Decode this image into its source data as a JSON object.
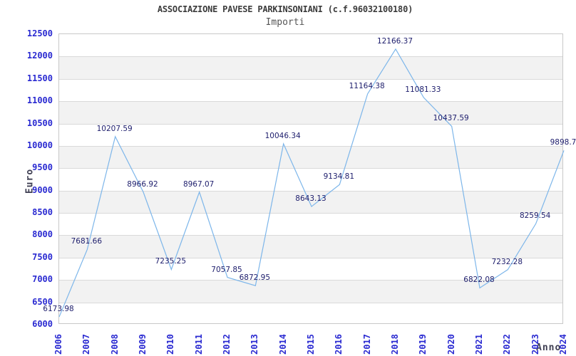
{
  "header": {
    "title": "ASSOCIAZIONE PAVESE PARKINSONIANI (c.f.96032100180)",
    "subtitle": "Importi"
  },
  "colors": {
    "title": "#3b3b3b",
    "subtitle": "#565656",
    "tick_label": "#2929d1",
    "data_label": "#20206e",
    "axis_title": "#3e3e52",
    "line": "#7db6ea",
    "band": "#f2f2f2",
    "gridline": "#dadada",
    "border": "#c8c8c8"
  },
  "chart_data": {
    "type": "line",
    "title": "ASSOCIAZIONE PAVESE PARKINSONIANI (c.f.96032100180)",
    "subtitle": "Importi",
    "xlabel": "Anno",
    "ylabel": "Euro",
    "categories": [
      "2006",
      "2007",
      "2008",
      "2009",
      "2010",
      "2011",
      "2012",
      "2013",
      "2014",
      "2015",
      "2016",
      "2017",
      "2018",
      "2019",
      "2020",
      "2021",
      "2022",
      "2023",
      "2024"
    ],
    "values": [
      6173.98,
      7681.66,
      10207.59,
      8966.92,
      7235.25,
      8967.07,
      7057.85,
      6872.95,
      10046.34,
      8643.13,
      9134.81,
      11164.38,
      12166.37,
      11081.33,
      10437.59,
      6822.08,
      7232.28,
      8259.54,
      9898.7
    ],
    "point_labels": [
      "6173.98",
      "7681.66",
      "10207.59",
      "8966.92",
      "7235.25",
      "8967.07",
      "7057.85",
      "6872.95",
      "10046.34",
      "8643.13",
      "9134.81",
      "11164.38",
      "12166.37",
      "11081.33",
      "10437.59",
      "6822.08",
      "7232.28",
      "8259.54",
      "9898.7"
    ],
    "ylim": [
      6000,
      12500
    ],
    "ytick_step": 500,
    "grid": "horizontal-alternating-bands",
    "legend": "none"
  }
}
